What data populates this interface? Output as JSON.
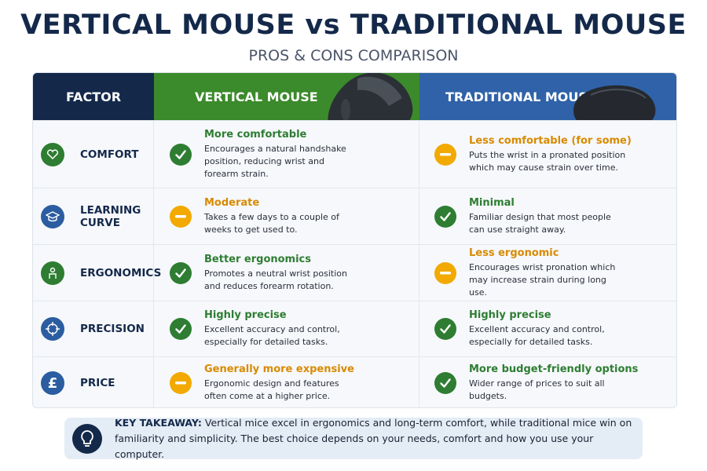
{
  "header": {
    "title": "VERTICAL MOUSE vs TRADITIONAL MOUSE",
    "subtitle": "PROS & CONS COMPARISON"
  },
  "table": {
    "columns": [
      "FACTOR",
      "VERTICAL MOUSE",
      "TRADITIONAL MOUSE"
    ],
    "rows": [
      {
        "factor": "COMFORT",
        "vertical": {
          "heading": "More comfortable",
          "text": "Encourages a natural handshake position, reducing wrist and forearm strain."
        },
        "traditional": {
          "heading": "Less comfortable (for some)",
          "text": "Puts the wrist in a pronated position which may cause strain over time."
        }
      },
      {
        "factor": "LEARNING CURVE",
        "vertical": {
          "heading": "Moderate",
          "text": "Takes a few days to a couple of weeks to get used to."
        },
        "traditional": {
          "heading": "Minimal",
          "text": "Familiar design that most people can use straight away."
        }
      },
      {
        "factor": "ERGONOMICS",
        "vertical": {
          "heading": "Better ergonomics",
          "text": "Promotes a neutral wrist position and reduces forearm rotation."
        },
        "traditional": {
          "heading": "Less ergonomic",
          "text": "Encourages wrist pronation which may increase strain during long use."
        }
      },
      {
        "factor": "PRECISION",
        "vertical": {
          "heading": "Highly precise",
          "text": "Excellent accuracy and control, especially for detailed tasks."
        },
        "traditional": {
          "heading": "Highly precise",
          "text": "Excellent accuracy and control, especially for detailed tasks."
        }
      },
      {
        "factor": "PRICE",
        "vertical": {
          "heading": "Generally more expensive",
          "text": "Ergonomic design and features often come at a higher price."
        },
        "traditional": {
          "heading": "More budget-friendly options",
          "text": "Wider range of prices to suit all budgets."
        }
      }
    ]
  },
  "takeaway": {
    "label": "KEY TAKEAWAY:",
    "text": "Vertical mice excel in ergonomics and long-term comfort, while traditional mice win on familiarity and simplicity. The best choice depends on your needs, comfort and how you use your computer."
  }
}
